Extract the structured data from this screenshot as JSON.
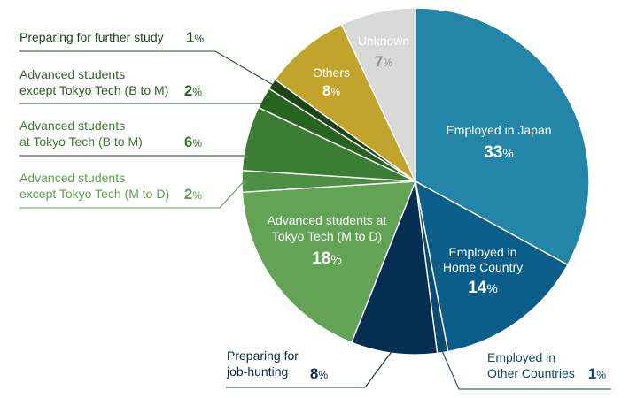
{
  "chart_data": {
    "type": "pie",
    "start": "12 o'clock, clockwise",
    "slices": [
      {
        "key": "employed_japan",
        "label_lines": [
          "Employed in Japan"
        ],
        "value": 33,
        "color": "#2385a7",
        "label_color": "#ffffff",
        "label_pos": "inside"
      },
      {
        "key": "employed_home",
        "label_lines": [
          "Employed in",
          "Home Country"
        ],
        "value": 14,
        "color": "#0b5e89",
        "label_color": "#ffffff",
        "label_pos": "inside"
      },
      {
        "key": "employed_other",
        "label_lines": [
          "Employed in",
          "Other Countries"
        ],
        "value": 1,
        "color": "#0a4b74",
        "label_color": "#11456b",
        "label_pos": "outside-bottom-right"
      },
      {
        "key": "job_hunting",
        "label_lines": [
          "Preparing for",
          "job-hunting"
        ],
        "value": 8,
        "color": "#062e53",
        "label_color": "#0a2a4d",
        "label_pos": "outside-bottom-left"
      },
      {
        "key": "adv_tt_m_to_d",
        "label_lines": [
          "Advanced students at",
          "Tokyo Tech (M to D)"
        ],
        "value": 18,
        "color": "#62a356",
        "label_color": "#ffffff",
        "label_pos": "inside"
      },
      {
        "key": "adv_ext_m_to_d",
        "label_lines": [
          "Advanced students",
          "except Tokyo Tech (M to D)"
        ],
        "value": 2,
        "color": "#4f8f45",
        "label_color": "#5c9e4c",
        "label_pos": "outside-left"
      },
      {
        "key": "adv_tt_b_to_m",
        "label_lines": [
          "Advanced students",
          "at Tokyo Tech (B to M)"
        ],
        "value": 6,
        "color": "#3a7d33",
        "label_color": "#3d7a30",
        "label_pos": "outside-left"
      },
      {
        "key": "adv_ext_b_to_m",
        "label_lines": [
          "Advanced students",
          "except Tokyo Tech (B to M)"
        ],
        "value": 2,
        "color": "#27641f",
        "label_color": "#2d5e24",
        "label_pos": "outside-left"
      },
      {
        "key": "further_study",
        "label_lines": [
          "Preparing for further study"
        ],
        "value": 1,
        "color": "#1b4418",
        "label_color": "#1e4a1a",
        "label_pos": "outside-left"
      },
      {
        "key": "others",
        "label_lines": [
          "Others"
        ],
        "value": 8,
        "color": "#c2a42d",
        "label_color": "#ffffff",
        "label_pos": "inside"
      },
      {
        "key": "unknown",
        "label_lines": [
          "Unknown"
        ],
        "value": 7,
        "color": "#d9d9d9",
        "label_color": "#ffffff",
        "pct_color": "#8c8c8c",
        "label_pos": "inside"
      }
    ],
    "unit": "%",
    "leader_line_color": "#1f3d1c"
  }
}
